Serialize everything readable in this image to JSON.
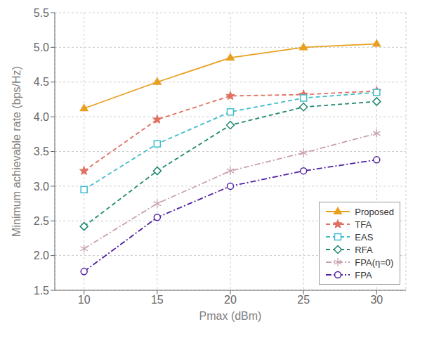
{
  "chart_data": {
    "type": "line",
    "xlabel": "Pmax (dBm)",
    "ylabel": "Minimum achievable rate (bps/Hz)",
    "x": [
      10,
      15,
      20,
      25,
      30
    ],
    "series": [
      {
        "name": "Proposed",
        "color": "#E8A020",
        "marker": "triangle",
        "line_style": "solid",
        "values": [
          4.12,
          4.5,
          4.85,
          5.0,
          5.05
        ]
      },
      {
        "name": "TFA",
        "color": "#E07060",
        "marker": "star",
        "line_style": "dashed",
        "values": [
          3.22,
          3.96,
          4.3,
          4.32,
          4.37
        ]
      },
      {
        "name": "EAS",
        "color": "#40BCCC",
        "marker": "square",
        "line_style": "dashed",
        "values": [
          2.95,
          3.61,
          4.07,
          4.27,
          4.35
        ]
      },
      {
        "name": "RFA",
        "color": "#208870",
        "marker": "diamond",
        "line_style": "dashed",
        "values": [
          2.42,
          3.22,
          3.88,
          4.14,
          4.22
        ]
      },
      {
        "name": "FPA(η=0)",
        "color": "#C8A0B0",
        "marker": "asterisk",
        "line_style": "dashdot",
        "values": [
          2.1,
          2.75,
          3.22,
          3.48,
          3.76
        ]
      },
      {
        "name": "FPA",
        "color": "#5020A0",
        "marker": "circle",
        "line_style": "dashdot",
        "values": [
          1.77,
          2.55,
          3.0,
          3.22,
          3.38
        ]
      }
    ],
    "xlim": [
      8,
      32
    ],
    "xticks": [
      10,
      15,
      20,
      25,
      30
    ],
    "ylim": [
      1.5,
      5.5
    ],
    "yticks": [
      1.5,
      {
        "value": 2,
        "label": "2.0"
      },
      2.5,
      {
        "value": 3,
        "label": "3.0"
      },
      3.5,
      {
        "value": 4,
        "label": "4.0"
      },
      4.5,
      {
        "value": 5,
        "label": "5.0"
      },
      5.5
    ],
    "grid": true,
    "legend": "lower right"
  }
}
